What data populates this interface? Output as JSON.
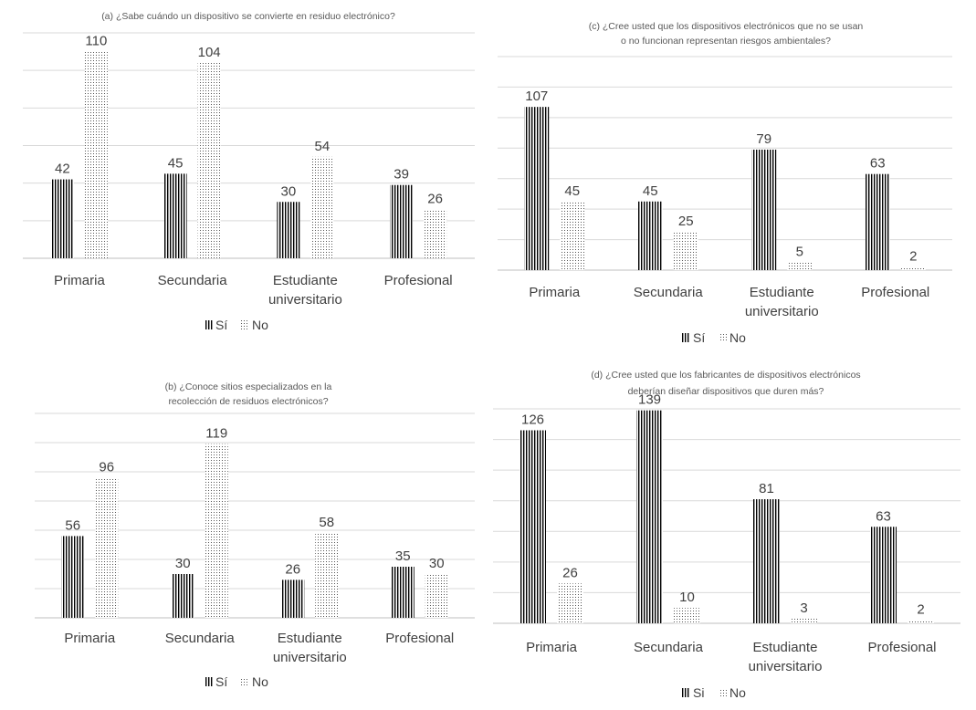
{
  "chart_data": [
    {
      "type": "bar",
      "title": "(a) ¿Sabe cuándo un dispositivo se convierte en residuo electrónico?",
      "categories": [
        "Primaria",
        "Secundaria",
        "Estudiante universitario",
        "Profesional"
      ],
      "series": [
        {
          "name": "Sí",
          "values": [
            42,
            45,
            30,
            39
          ],
          "pattern": "vertical-stripes"
        },
        {
          "name": "No",
          "values": [
            110,
            104,
            54,
            26
          ],
          "pattern": "dotted"
        }
      ],
      "ylim": [
        0,
        120
      ],
      "grid": true,
      "legend": "bottom"
    },
    {
      "type": "bar",
      "title": "(c) ¿Cree usted que los dispositivos electrónicos que no se usan o no funcionan representan riesgos ambientales?",
      "categories": [
        "Primaria",
        "Secundaria",
        "Estudiante universitario",
        "Profesional"
      ],
      "series": [
        {
          "name": "Sí",
          "values": [
            107,
            45,
            79,
            63
          ],
          "pattern": "vertical-stripes"
        },
        {
          "name": "No",
          "values": [
            45,
            25,
            5,
            2
          ],
          "pattern": "dotted"
        }
      ],
      "ylim": [
        0,
        140
      ],
      "grid": true,
      "legend": "bottom"
    },
    {
      "type": "bar",
      "title": "(b) ¿Conoce sitios especializados en la recolección de residuos electrónicos?",
      "categories": [
        "Primaria",
        "Secundaria",
        "Estudiante universitario",
        "Profesional"
      ],
      "series": [
        {
          "name": "Sí",
          "values": [
            56,
            30,
            26,
            35
          ],
          "pattern": "vertical-stripes"
        },
        {
          "name": "No",
          "values": [
            96,
            119,
            58,
            30
          ],
          "pattern": "dotted"
        }
      ],
      "ylim": [
        0,
        140
      ],
      "grid": true,
      "legend": "bottom"
    },
    {
      "type": "bar",
      "title": "(d) ¿Cree usted que los fabricantes de dispositivos electrónicos deberían diseñar dispositivos que duren más?",
      "categories": [
        "Primaria",
        "Secundaria",
        "Estudiante universitario",
        "Profesional"
      ],
      "series": [
        {
          "name": "Si",
          "values": [
            126,
            139,
            81,
            63
          ],
          "pattern": "vertical-stripes"
        },
        {
          "name": "No",
          "values": [
            26,
            10,
            3,
            2
          ],
          "pattern": "dotted"
        }
      ],
      "ylim": [
        0,
        140
      ],
      "grid": true,
      "legend": "bottom"
    }
  ],
  "colors": {
    "bar": "#000000",
    "grid": "#d9d9d9",
    "text": "#404040"
  }
}
